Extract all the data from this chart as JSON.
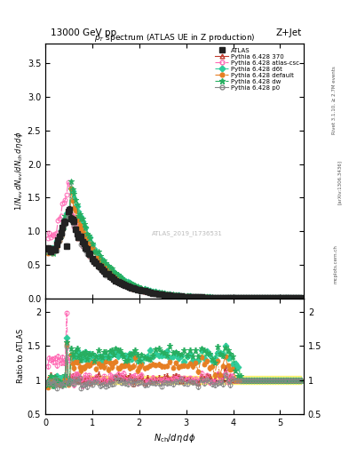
{
  "title_top": "13000 GeV pp",
  "title_right": "Z+Jet",
  "subtitle": "p_{T} spectrum (ATLAS UE in Z production)",
  "xlabel": "N_{ch}/d\\eta d\\phi",
  "ylabel_main": "1/N_{ev} dN_{ev}/dN_{ch} d\\eta d\\phi",
  "ylabel_ratio": "Ratio to ATLAS",
  "watermark": "ATLAS_2019_I1736531",
  "xlim": [
    0,
    5.5
  ],
  "ylim_main": [
    0,
    3.8
  ],
  "ylim_ratio": [
    0.5,
    2.2
  ],
  "colors": [
    "#222222",
    "#c0392b",
    "#ff69b4",
    "#2ecc9a",
    "#e67e22",
    "#27ae60",
    "#888888"
  ],
  "markers": [
    "s",
    "^",
    "o",
    "D",
    "o",
    "*",
    "o"
  ],
  "linestyles": [
    "none",
    "-",
    "-.",
    "-.",
    "-.",
    "-.",
    "-"
  ],
  "filleds": [
    true,
    false,
    false,
    true,
    true,
    true,
    false
  ],
  "mss": [
    4,
    3.5,
    3.5,
    3.5,
    3.5,
    4.5,
    3.5
  ],
  "labels": [
    "ATLAS",
    "Pythia 6.428 370",
    "Pythia 6.428 atlas-csc",
    "Pythia 6.428 d6t",
    "Pythia 6.428 default",
    "Pythia 6.428 dw",
    "Pythia 6.428 p0"
  ]
}
